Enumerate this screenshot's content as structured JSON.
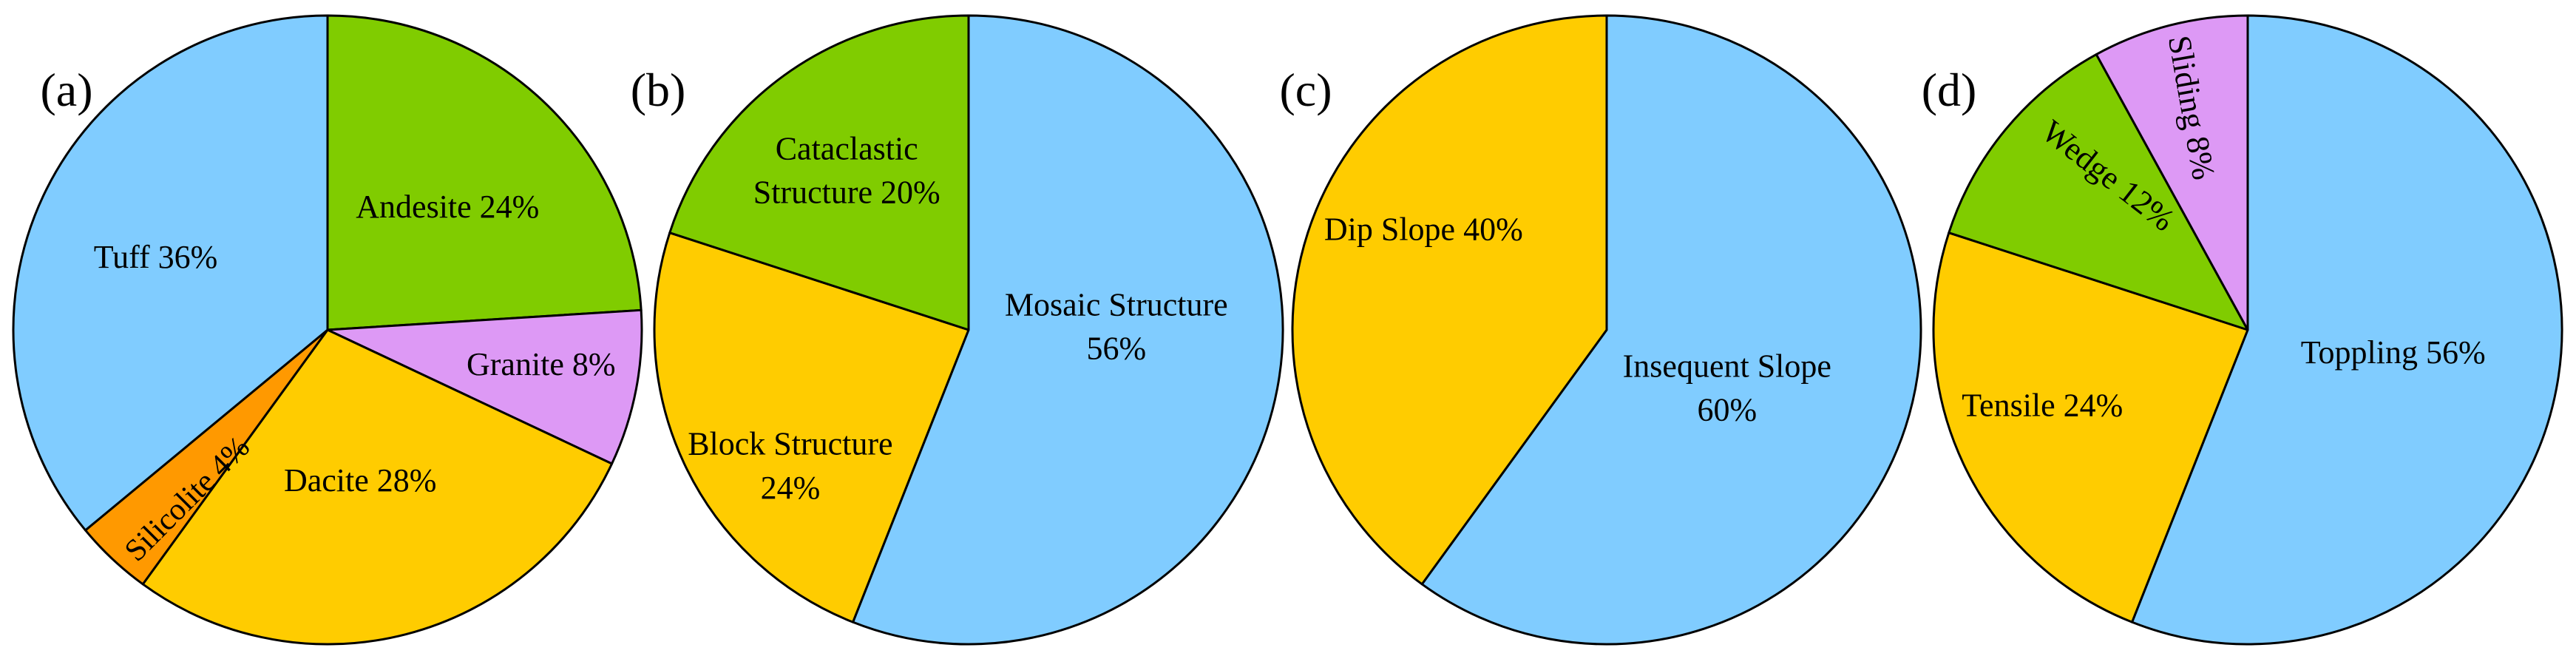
{
  "chart_data": [
    {
      "type": "pie",
      "panel_label": "(a)",
      "slices": [
        {
          "label": "Andesite 24%",
          "value": 24,
          "color": "#80cc00"
        },
        {
          "label": "Granite 8%",
          "value": 8,
          "color": "#dd99f5"
        },
        {
          "label": "Dacite 28%",
          "value": 28,
          "color": "#ffcc00"
        },
        {
          "label": "Silicolite 4%",
          "value": 4,
          "color": "#ff9900"
        },
        {
          "label": "Tuff 36%",
          "value": 36,
          "color": "#80ccff"
        }
      ]
    },
    {
      "type": "pie",
      "panel_label": "(b)",
      "slices": [
        {
          "label_lines": [
            "Mosaic Structure",
            "56%"
          ],
          "value": 56,
          "color": "#80ccff"
        },
        {
          "label_lines": [
            "Block Structure",
            "24%"
          ],
          "value": 24,
          "color": "#ffcc00"
        },
        {
          "label_lines": [
            "Cataclastic",
            "Structure 20%"
          ],
          "value": 20,
          "color": "#80cc00"
        }
      ]
    },
    {
      "type": "pie",
      "panel_label": "(c)",
      "slices": [
        {
          "label_lines": [
            "Insequent Slope",
            "60%"
          ],
          "value": 60,
          "color": "#80ccff"
        },
        {
          "label": "Dip Slope 40%",
          "value": 40,
          "color": "#ffcc00"
        }
      ]
    },
    {
      "type": "pie",
      "panel_label": "(d)",
      "slices": [
        {
          "label": "Toppling 56%",
          "value": 56,
          "color": "#80ccff"
        },
        {
          "label": "Tensile 24%",
          "value": 24,
          "color": "#ffcc00"
        },
        {
          "label": "Wedge 12%",
          "value": 12,
          "color": "#80cc00"
        },
        {
          "label": "Sliding 8%",
          "value": 8,
          "color": "#dd99f5"
        }
      ]
    }
  ]
}
